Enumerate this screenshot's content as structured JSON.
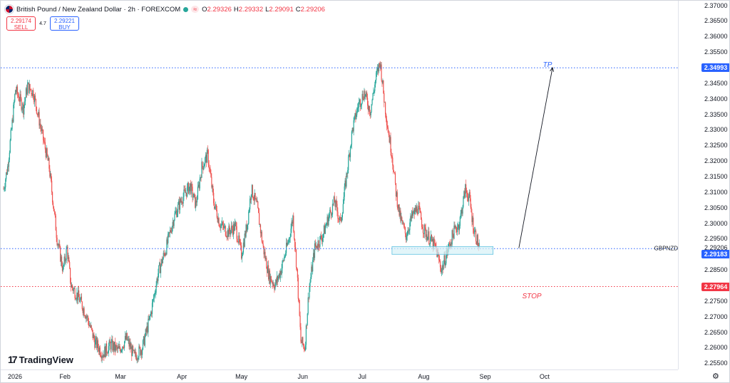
{
  "header": {
    "title": "British Pound / New Zealand Dollar · 2h · FOREXCOM",
    "ohlc": [
      {
        "key": "O",
        "value": "2.29326"
      },
      {
        "key": "H",
        "value": "2.29332"
      },
      {
        "key": "L",
        "value": "2.29091"
      },
      {
        "key": "C",
        "value": "2.29206"
      }
    ]
  },
  "trade": {
    "sell_price": "2.29174",
    "sell_label": "SELL",
    "spread": "4.7",
    "buy_price": "2.29221",
    "buy_label": "BUY"
  },
  "price_axis": {
    "ticks": [
      "2.37000",
      "2.36500",
      "2.36000",
      "2.35500",
      "2.35000",
      "2.34500",
      "2.34000",
      "2.33500",
      "2.33000",
      "2.32500",
      "2.32000",
      "2.31500",
      "2.31000",
      "2.30500",
      "2.30000",
      "2.29500",
      "2.29206",
      "2.28500",
      "2.28000",
      "2.27500",
      "2.27000",
      "2.26500",
      "2.26000",
      "2.25500"
    ],
    "symbol_label": "GBPNZD",
    "tp_badge": "2.34993",
    "current_badge": "2.29183",
    "stop_badge": "2.27964"
  },
  "time_axis": {
    "labels": [
      "2026",
      "Feb",
      "Mar",
      "Apr",
      "May",
      "Jun",
      "Jul",
      "Aug",
      "Sep",
      "Oct"
    ]
  },
  "annotations": {
    "tp_label": "TP",
    "stop_label": "STOP"
  },
  "branding": {
    "logo_text": "TradingView"
  },
  "colors": {
    "up": "#26a69a",
    "down": "#ef5350",
    "tp_line": "#2962ff",
    "stop_line": "#f23645",
    "current_line": "#2962ff",
    "zone_fill": "#d6f1f7",
    "zone_border": "#5dc0e0"
  },
  "chart_data": {
    "type": "candlestick",
    "symbol": "GBPNZD",
    "timeframe": "2h",
    "ylim": [
      2.253,
      2.3715
    ],
    "x_range": [
      "2026-01-01",
      "2026-10-20"
    ],
    "levels": {
      "take_profit": 2.34993,
      "current": 2.29183,
      "stop": 2.27964
    },
    "zone": {
      "start": "2026-07-16",
      "end": "2026-09-05",
      "low": 2.29,
      "high": 2.2925
    },
    "projection": {
      "from_date": "2026-09-18",
      "from_price": 2.292,
      "to_date": "2026-10-05",
      "to_price": 2.35
    },
    "path": [
      {
        "date": "2026-01-01",
        "price": 2.311
      },
      {
        "date": "2026-01-03",
        "price": 2.318
      },
      {
        "date": "2026-01-05",
        "price": 2.33
      },
      {
        "date": "2026-01-07",
        "price": 2.343
      },
      {
        "date": "2026-01-09",
        "price": 2.34
      },
      {
        "date": "2026-01-11",
        "price": 2.337
      },
      {
        "date": "2026-01-13",
        "price": 2.344
      },
      {
        "date": "2026-01-16",
        "price": 2.342
      },
      {
        "date": "2026-01-20",
        "price": 2.33
      },
      {
        "date": "2026-01-24",
        "price": 2.318
      },
      {
        "date": "2026-01-28",
        "price": 2.295
      },
      {
        "date": "2026-01-31",
        "price": 2.285
      },
      {
        "date": "2026-02-02",
        "price": 2.292
      },
      {
        "date": "2026-02-04",
        "price": 2.28
      },
      {
        "date": "2026-02-08",
        "price": 2.276
      },
      {
        "date": "2026-02-12",
        "price": 2.27
      },
      {
        "date": "2026-02-16",
        "price": 2.262
      },
      {
        "date": "2026-02-20",
        "price": 2.258
      },
      {
        "date": "2026-02-24",
        "price": 2.261
      },
      {
        "date": "2026-02-28",
        "price": 2.259
      },
      {
        "date": "2026-03-04",
        "price": 2.263
      },
      {
        "date": "2026-03-08",
        "price": 2.257
      },
      {
        "date": "2026-03-12",
        "price": 2.26
      },
      {
        "date": "2026-03-16",
        "price": 2.27
      },
      {
        "date": "2026-03-20",
        "price": 2.284
      },
      {
        "date": "2026-03-24",
        "price": 2.292
      },
      {
        "date": "2026-03-28",
        "price": 2.302
      },
      {
        "date": "2026-04-01",
        "price": 2.308
      },
      {
        "date": "2026-04-05",
        "price": 2.312
      },
      {
        "date": "2026-04-08",
        "price": 2.306
      },
      {
        "date": "2026-04-11",
        "price": 2.318
      },
      {
        "date": "2026-04-14",
        "price": 2.322
      },
      {
        "date": "2026-04-17",
        "price": 2.307
      },
      {
        "date": "2026-04-20",
        "price": 2.3
      },
      {
        "date": "2026-04-24",
        "price": 2.297
      },
      {
        "date": "2026-04-28",
        "price": 2.299
      },
      {
        "date": "2026-05-01",
        "price": 2.29
      },
      {
        "date": "2026-05-04",
        "price": 2.3
      },
      {
        "date": "2026-05-06",
        "price": 2.311
      },
      {
        "date": "2026-05-09",
        "price": 2.305
      },
      {
        "date": "2026-05-12",
        "price": 2.292
      },
      {
        "date": "2026-05-15",
        "price": 2.283
      },
      {
        "date": "2026-05-18",
        "price": 2.28
      },
      {
        "date": "2026-05-21",
        "price": 2.285
      },
      {
        "date": "2026-05-25",
        "price": 2.295
      },
      {
        "date": "2026-05-27",
        "price": 2.302
      },
      {
        "date": "2026-05-29",
        "price": 2.285
      },
      {
        "date": "2026-05-31",
        "price": 2.262
      },
      {
        "date": "2026-06-02",
        "price": 2.26
      },
      {
        "date": "2026-06-04",
        "price": 2.278
      },
      {
        "date": "2026-06-07",
        "price": 2.292
      },
      {
        "date": "2026-06-11",
        "price": 2.296
      },
      {
        "date": "2026-06-14",
        "price": 2.302
      },
      {
        "date": "2026-06-17",
        "price": 2.307
      },
      {
        "date": "2026-06-20",
        "price": 2.3
      },
      {
        "date": "2026-06-23",
        "price": 2.315
      },
      {
        "date": "2026-06-26",
        "price": 2.33
      },
      {
        "date": "2026-06-29",
        "price": 2.338
      },
      {
        "date": "2026-07-02",
        "price": 2.342
      },
      {
        "date": "2026-07-05",
        "price": 2.336
      },
      {
        "date": "2026-07-08",
        "price": 2.347
      },
      {
        "date": "2026-07-10",
        "price": 2.352
      },
      {
        "date": "2026-07-12",
        "price": 2.34
      },
      {
        "date": "2026-07-14",
        "price": 2.33
      },
      {
        "date": "2026-07-16",
        "price": 2.322
      },
      {
        "date": "2026-07-18",
        "price": 2.31
      },
      {
        "date": "2026-07-20",
        "price": 2.302
      },
      {
        "date": "2026-07-23",
        "price": 2.296
      },
      {
        "date": "2026-07-26",
        "price": 2.302
      },
      {
        "date": "2026-07-29",
        "price": 2.305
      },
      {
        "date": "2026-08-01",
        "price": 2.298
      },
      {
        "date": "2026-08-04",
        "price": 2.295
      },
      {
        "date": "2026-08-07",
        "price": 2.292
      },
      {
        "date": "2026-08-10",
        "price": 2.285
      },
      {
        "date": "2026-08-13",
        "price": 2.291
      },
      {
        "date": "2026-08-16",
        "price": 2.297
      },
      {
        "date": "2026-08-19",
        "price": 2.3
      },
      {
        "date": "2026-08-22",
        "price": 2.311
      },
      {
        "date": "2026-08-24",
        "price": 2.308
      },
      {
        "date": "2026-08-26",
        "price": 2.299
      },
      {
        "date": "2026-08-29",
        "price": 2.292
      }
    ]
  }
}
